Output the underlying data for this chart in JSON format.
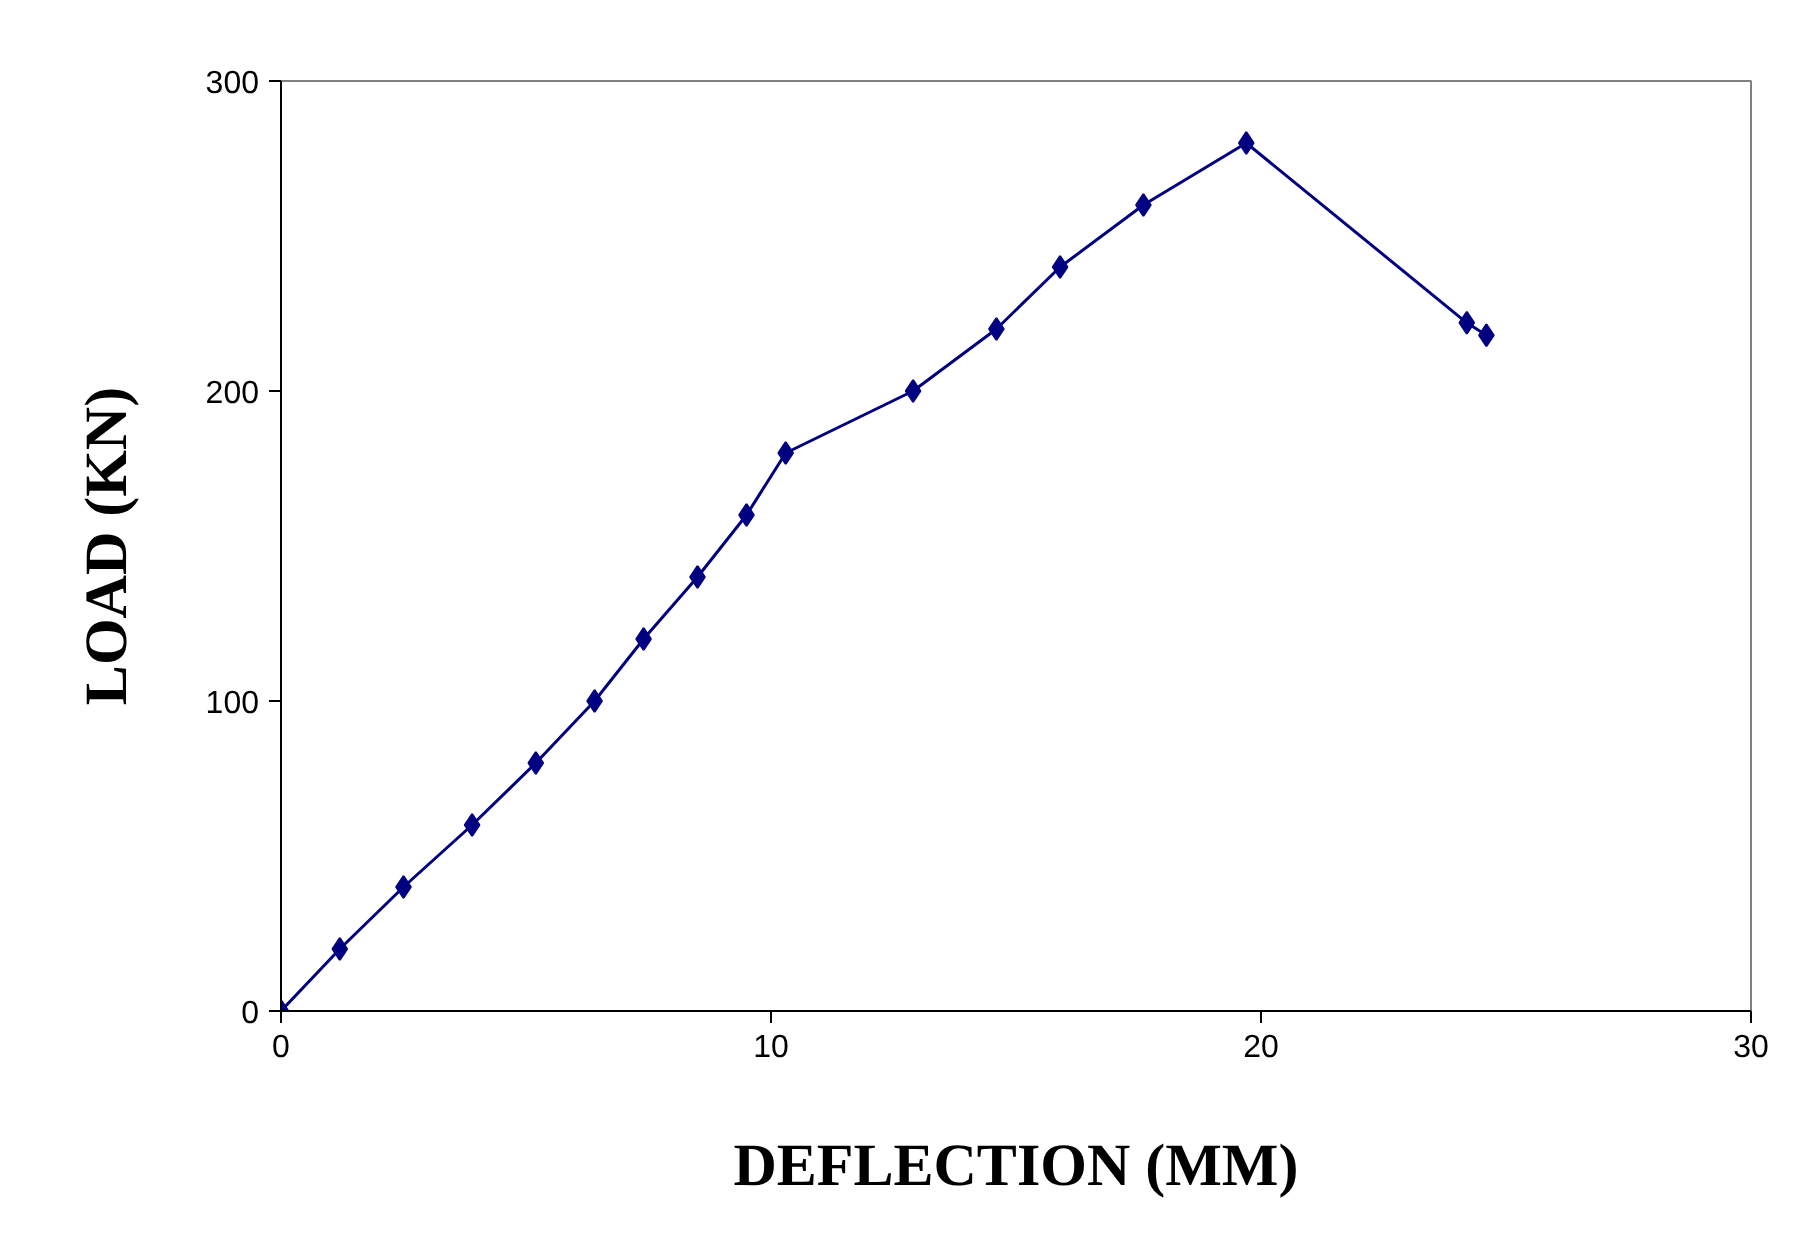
{
  "chart_data": {
    "type": "line",
    "xlabel": "DEFLECTION (MM)",
    "ylabel": "LOAD (KN)",
    "x": [
      0,
      1.2,
      2.5,
      3.9,
      5.2,
      6.4,
      7.4,
      8.5,
      9.5,
      10.3,
      12.9,
      14.6,
      15.9,
      17.6,
      19.7,
      24.2,
      24.6
    ],
    "series": [
      {
        "color": "#000080",
        "values": [
          0,
          20,
          40,
          60,
          80,
          100,
          120,
          140,
          160,
          180,
          200,
          220,
          240,
          260,
          280,
          222,
          218
        ]
      }
    ],
    "xlim": [
      0,
      30
    ],
    "ylim": [
      0,
      300
    ],
    "xticks": [
      0,
      10,
      20,
      30
    ],
    "yticks": [
      0,
      100,
      200,
      300
    ],
    "grid": false,
    "marker": "diamond",
    "line_style": "solid"
  }
}
